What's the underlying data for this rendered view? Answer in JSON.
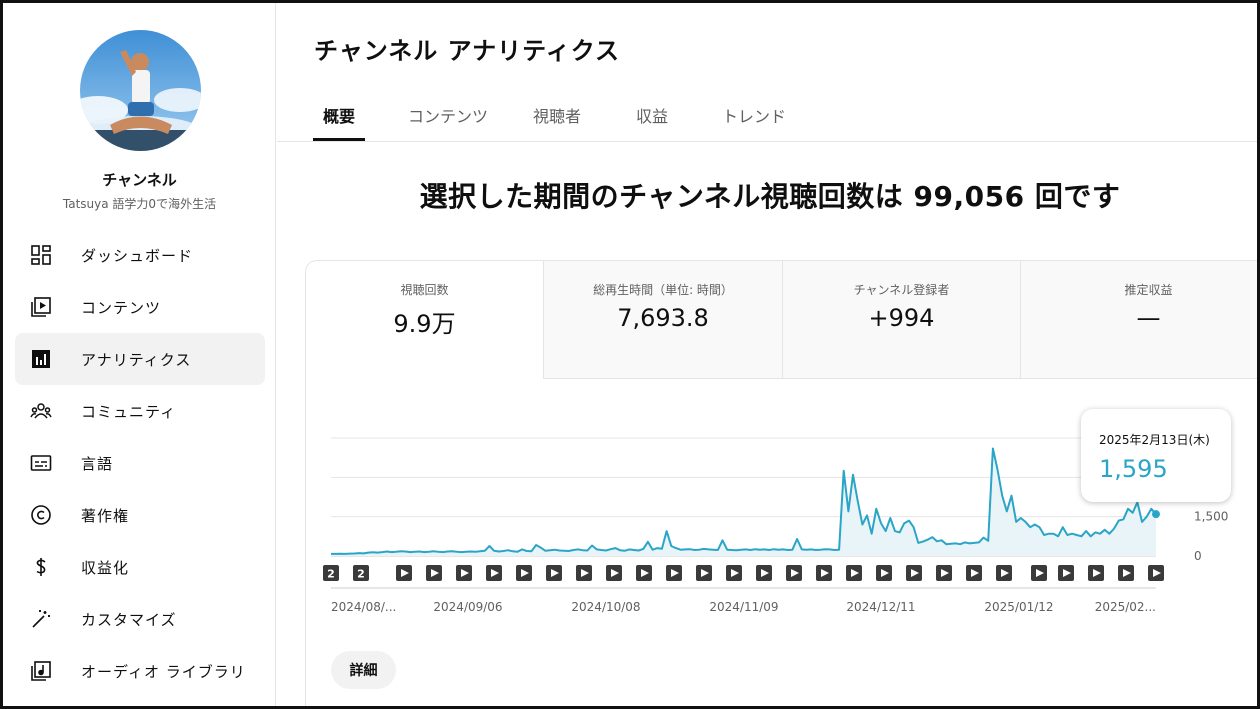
{
  "sidebar": {
    "channel_name": "チャンネル",
    "channel_subtitle": "Tatsuya 語学力0で海外生活",
    "items": [
      {
        "label": "ダッシュボード",
        "icon": "dashboard-icon"
      },
      {
        "label": "コンテンツ",
        "icon": "content-icon"
      },
      {
        "label": "アナリティクス",
        "icon": "analytics-icon",
        "active": true
      },
      {
        "label": "コミュニティ",
        "icon": "community-icon"
      },
      {
        "label": "言語",
        "icon": "subtitles-icon"
      },
      {
        "label": "著作権",
        "icon": "copyright-icon"
      },
      {
        "label": "収益化",
        "icon": "dollar-icon"
      },
      {
        "label": "カスタマイズ",
        "icon": "magic-wand-icon"
      },
      {
        "label": "オーディオ ライブラリ",
        "icon": "audio-library-icon"
      }
    ]
  },
  "header": {
    "title": "チャンネル アナリティクス",
    "tabs": [
      "概要",
      "コンテンツ",
      "視聴者",
      "収益",
      "トレンド"
    ],
    "active_tab": "概要"
  },
  "summary": {
    "headline": "選択した期間のチャンネル視聴回数は 99,056 回です"
  },
  "metrics": [
    {
      "label": "視聴回数",
      "value": "9.9万",
      "active": true
    },
    {
      "label": "総再生時間（単位: 時間）",
      "value": "7,693.8"
    },
    {
      "label": "チャンネル登録者",
      "value": "+994"
    },
    {
      "label": "推定収益",
      "value": "—"
    }
  ],
  "tooltip": {
    "date": "2025年2月13日(木)",
    "value": "1,595"
  },
  "colors": {
    "accent": "#2ba5c7",
    "area_fill": "#e8f4f8",
    "grid": "#e5e5e5",
    "marker": "#3a3a3a"
  },
  "chart_data": {
    "type": "area",
    "x_tick_labels": [
      "2024/08/...",
      "2024/09/06",
      "2024/10/08",
      "2024/11/09",
      "2024/12/11",
      "2025/01/12",
      "2025/02..."
    ],
    "ylim": [
      0,
      4500
    ],
    "y_tick_labels": [
      "0",
      "1,500"
    ],
    "y_tick_values": [
      0,
      1500
    ],
    "grid": true,
    "values": [
      80,
      80,
      85,
      80,
      90,
      95,
      110,
      100,
      130,
      140,
      130,
      150,
      170,
      150,
      160,
      180,
      170,
      150,
      160,
      170,
      150,
      160,
      180,
      160,
      150,
      170,
      180,
      160,
      150,
      160,
      170,
      160,
      180,
      200,
      380,
      200,
      170,
      190,
      220,
      180,
      160,
      250,
      190,
      180,
      420,
      320,
      200,
      220,
      240,
      210,
      200,
      190,
      230,
      250,
      220,
      210,
      400,
      250,
      230,
      210,
      260,
      300,
      220,
      200,
      250,
      230,
      210,
      270,
      540,
      240,
      300,
      280,
      950,
      380,
      300,
      240,
      250,
      260,
      230,
      240,
      270,
      250,
      240,
      230,
      600,
      240,
      230,
      220,
      240,
      250,
      230,
      260,
      240,
      250,
      230,
      260,
      240,
      250,
      230,
      240,
      650,
      250,
      240,
      250,
      230,
      240,
      260,
      250,
      230,
      240,
      3250,
      1700,
      3100,
      2100,
      1200,
      1550,
      850,
      1800,
      1250,
      950,
      1450,
      950,
      900,
      1250,
      1350,
      1100,
      500,
      550,
      620,
      720,
      560,
      600,
      450,
      470,
      480,
      450,
      520,
      480,
      500,
      520,
      700,
      580,
      4100,
      3300,
      2300,
      1700,
      2300,
      1300,
      1450,
      1300,
      1100,
      1200,
      1100,
      800,
      850,
      850,
      750,
      1100,
      800,
      850,
      800,
      750,
      950,
      750,
      900,
      850,
      1000,
      850,
      1050,
      1350,
      1400,
      1800,
      1650,
      2050,
      1300,
      1500,
      1800,
      1595
    ],
    "markers": [
      "2",
      "2",
      "play",
      "play",
      "play",
      "play",
      "play",
      "play",
      "play",
      "play",
      "play",
      "play",
      "play",
      "play",
      "play",
      "play",
      "play",
      "play",
      "play",
      "play",
      "play",
      "play",
      "play",
      "play",
      "play",
      "play",
      "play",
      "play"
    ]
  },
  "actions": {
    "detail_label": "詳細"
  }
}
